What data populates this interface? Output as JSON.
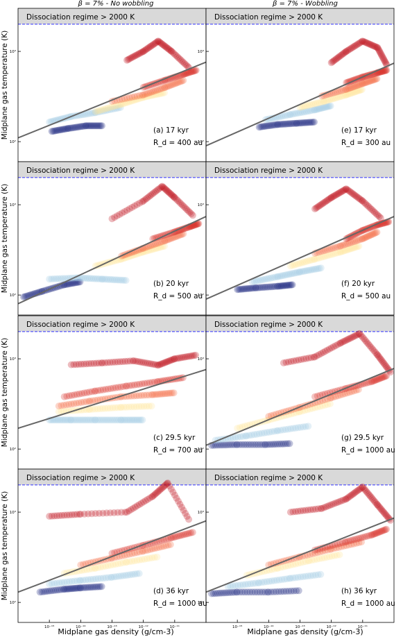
{
  "figure": {
    "column_titles": [
      "β = 7% - No wobbling",
      "β = 7% - Wobbling"
    ],
    "xlabel": "Midplane gas density (g/cm-3)",
    "ylabel": "Midplane gas temperature (K)",
    "regime_label": "Dissociation regime > 2000 K"
  },
  "colors": {
    "regime_band": "#d9d9d9",
    "dashed_line": "#3333ff",
    "fit_line": "#666666",
    "hot": "#c0101a",
    "cold": "#1a237e"
  },
  "chart_data": [
    {
      "type": "scatter",
      "panel": "(a) 17 kyr",
      "rd": "R_d = 400 au",
      "xscale": "log",
      "yscale": "log",
      "xlim": [
        1e-16,
        1e-10
      ],
      "ylim": [
        60,
        3000
      ],
      "dissociation_T": 2000,
      "x_ticks": [
        "10⁻¹⁵",
        "10⁻¹⁴",
        "10⁻¹³",
        "10⁻¹²",
        "10⁻¹¹"
      ],
      "y_ticks": [
        "10²",
        "10³"
      ],
      "fit_line": {
        "x": [
          1e-16,
          1e-10
        ],
        "y": [
          110,
          760
        ]
      },
      "series": [
        {
          "x": [
            1.2e-15,
            4e-15,
            1.5e-14,
            5e-14
          ],
          "y": [
            130,
            140,
            150,
            150
          ],
          "color": "#1a237e"
        },
        {
          "x": [
            1e-15,
            5e-15,
            3e-14,
            2e-13
          ],
          "y": [
            165,
            190,
            210,
            240
          ],
          "color": "#9ecae1"
        },
        {
          "x": [
            3e-14,
            2e-13,
            1e-12,
            5e-12
          ],
          "y": [
            215,
            260,
            310,
            350
          ],
          "color": "#ffe699"
        },
        {
          "x": [
            1e-13,
            1e-12,
            5e-12,
            2e-11
          ],
          "y": [
            280,
            330,
            400,
            480
          ],
          "color": "#f46d43"
        },
        {
          "x": [
            1e-12,
            5e-12,
            2e-11,
            5e-11
          ],
          "y": [
            400,
            480,
            560,
            620
          ],
          "color": "#d73027"
        },
        {
          "x": [
            3e-13,
            1e-12,
            3e-12,
            8e-12,
            3e-11
          ],
          "y": [
            800,
            1000,
            1300,
            1000,
            650
          ],
          "color": "#c0101a"
        }
      ]
    },
    {
      "type": "scatter",
      "panel": "(e) 17 kyr",
      "rd": "R_d = 300 au",
      "xscale": "log",
      "yscale": "log",
      "xlim": [
        1e-16,
        1e-10
      ],
      "ylim": [
        60,
        3000
      ],
      "dissociation_T": 2000,
      "x_ticks": [
        "10⁻¹⁵",
        "10⁻¹⁴",
        "10⁻¹³",
        "10⁻¹²",
        "10⁻¹¹"
      ],
      "y_ticks": [
        "10²",
        "10³"
      ],
      "fit_line": {
        "x": [
          1e-16,
          1e-10
        ],
        "y": [
          90,
          740
        ]
      },
      "series": [
        {
          "x": [
            5e-15,
            2e-14,
            8e-14,
            3e-13
          ],
          "y": [
            145,
            155,
            160,
            165
          ],
          "color": "#1a237e"
        },
        {
          "x": [
            8e-15,
            5e-14,
            3e-13,
            1e-12
          ],
          "y": [
            175,
            200,
            225,
            250
          ],
          "color": "#9ecae1"
        },
        {
          "x": [
            1e-13,
            6e-13,
            3e-12,
            1e-11
          ],
          "y": [
            240,
            280,
            330,
            380
          ],
          "color": "#ffe699"
        },
        {
          "x": [
            5e-13,
            3e-12,
            1e-11,
            3e-11
          ],
          "y": [
            320,
            380,
            440,
            500
          ],
          "color": "#f46d43"
        },
        {
          "x": [
            3e-12,
            1e-11,
            3e-11,
            6e-11
          ],
          "y": [
            450,
            520,
            580,
            620
          ],
          "color": "#d73027"
        },
        {
          "x": [
            1e-12,
            3e-12,
            1e-11,
            3e-11,
            6e-11
          ],
          "y": [
            750,
            1000,
            1300,
            1100,
            700
          ],
          "color": "#c0101a"
        }
      ]
    },
    {
      "type": "scatter",
      "panel": "(b) 20 kyr",
      "rd": "R_d = 500 au",
      "xscale": "log",
      "yscale": "log",
      "xlim": [
        1e-16,
        1e-10
      ],
      "ylim": [
        60,
        3000
      ],
      "dissociation_T": 2000,
      "x_ticks": [
        "10⁻¹⁵",
        "10⁻¹⁴",
        "10⁻¹³",
        "10⁻¹²",
        "10⁻¹¹"
      ],
      "y_ticks": [
        "10²",
        "10³"
      ],
      "fit_line": {
        "x": [
          1e-16,
          1e-10
        ],
        "y": [
          80,
          740
        ]
      },
      "series": [
        {
          "x": [
            1.5e-16,
            6e-16,
            3e-15,
            1e-14
          ],
          "y": [
            95,
            110,
            130,
            140
          ],
          "color": "#1a237e"
        },
        {
          "x": [
            1e-15,
            8e-15,
            5e-14,
            3e-13
          ],
          "y": [
            150,
            155,
            150,
            145
          ],
          "color": "#9ecae1"
        },
        {
          "x": [
            3e-14,
            2e-13,
            1e-12,
            5e-12
          ],
          "y": [
            210,
            250,
            300,
            350
          ],
          "color": "#ffe699"
        },
        {
          "x": [
            2e-13,
            1e-12,
            5e-12,
            2e-11
          ],
          "y": [
            270,
            330,
            400,
            480
          ],
          "color": "#f46d43"
        },
        {
          "x": [
            2e-12,
            1e-11,
            3e-11,
            6e-11
          ],
          "y": [
            420,
            500,
            570,
            620
          ],
          "color": "#d73027"
        },
        {
          "x": [
            1e-13,
            1e-12,
            4e-12,
            1e-11,
            4e-11
          ],
          "y": [
            700,
            1100,
            1600,
            1200,
            750
          ],
          "color": "#c0101a"
        }
      ]
    },
    {
      "type": "scatter",
      "panel": "(f) 20 kyr",
      "rd": "R_d = 500 au",
      "xscale": "log",
      "yscale": "log",
      "xlim": [
        1e-16,
        1e-10
      ],
      "ylim": [
        60,
        3000
      ],
      "dissociation_T": 2000,
      "x_ticks": [
        "10⁻¹⁵",
        "10⁻¹⁴",
        "10⁻¹³",
        "10⁻¹²",
        "10⁻¹¹"
      ],
      "y_ticks": [
        "10²",
        "10³"
      ],
      "fit_line": {
        "x": [
          1e-16,
          1e-10
        ],
        "y": [
          90,
          740
        ]
      },
      "series": [
        {
          "x": [
            1e-15,
            4e-15,
            2e-14,
            6e-14
          ],
          "y": [
            115,
            120,
            125,
            130
          ],
          "color": "#1a237e"
        },
        {
          "x": [
            3e-15,
            2e-14,
            1e-13,
            5e-13
          ],
          "y": [
            140,
            160,
            180,
            200
          ],
          "color": "#9ecae1"
        },
        {
          "x": [
            5e-14,
            3e-13,
            2e-12,
            8e-12
          ],
          "y": [
            210,
            250,
            300,
            350
          ],
          "color": "#ffe699"
        },
        {
          "x": [
            3e-13,
            2e-12,
            1e-11,
            3e-11
          ],
          "y": [
            290,
            350,
            420,
            500
          ],
          "color": "#f46d43"
        },
        {
          "x": [
            3e-12,
            1e-11,
            3e-11,
            7e-11
          ],
          "y": [
            420,
            520,
            600,
            650
          ],
          "color": "#d73027"
        },
        {
          "x": [
            3e-13,
            1e-12,
            3e-12,
            1e-11,
            4e-11
          ],
          "y": [
            900,
            1200,
            1500,
            1100,
            700
          ],
          "color": "#c0101a"
        }
      ]
    },
    {
      "type": "scatter",
      "panel": "(c) 29.5 kyr",
      "rd": "R_d = 700 au",
      "xscale": "log",
      "yscale": "log",
      "xlim": [
        1e-16,
        1e-10
      ],
      "ylim": [
        60,
        3000
      ],
      "dissociation_T": 2000,
      "x_ticks": [
        "10⁻¹⁵",
        "10⁻¹⁴",
        "10⁻¹³",
        "10⁻¹²",
        "10⁻¹¹"
      ],
      "y_ticks": [
        "10²",
        "10³"
      ],
      "fit_line": {
        "x": [
          1e-16,
          1e-10
        ],
        "y": [
          170,
          760
        ]
      },
      "series": [
        {
          "x": [
            1e-15,
            5e-15,
            3e-14,
            2e-13,
            1e-12
          ],
          "y": [
            210,
            210,
            210,
            210,
            210
          ],
          "color": "#9ecae1"
        },
        {
          "x": [
            2e-15,
            2e-14,
            2e-13,
            2e-12
          ],
          "y": [
            260,
            275,
            290,
            300
          ],
          "color": "#ffe699"
        },
        {
          "x": [
            2e-15,
            2e-14,
            2e-13,
            2e-12,
            1e-11
          ],
          "y": [
            300,
            340,
            380,
            400,
            420
          ],
          "color": "#f46d43"
        },
        {
          "x": [
            3e-15,
            3e-14,
            3e-13,
            3e-12,
            2e-11
          ],
          "y": [
            380,
            440,
            500,
            560,
            620
          ],
          "color": "#d73027"
        },
        {
          "x": [
            5e-15,
            5e-14,
            5e-13,
            3e-12,
            1e-11,
            5e-11
          ],
          "y": [
            860,
            900,
            950,
            850,
            1000,
            1100
          ],
          "color": "#c0101a"
        }
      ]
    },
    {
      "type": "scatter",
      "panel": "(g) 29.5 kyr",
      "rd": "R_d = 1000 au",
      "xscale": "log",
      "yscale": "log",
      "xlim": [
        1e-16,
        1e-10
      ],
      "ylim": [
        60,
        3000
      ],
      "dissociation_T": 2000,
      "x_ticks": [
        "10⁻¹⁵",
        "10⁻¹⁴",
        "10⁻¹³",
        "10⁻¹²",
        "10⁻¹¹"
      ],
      "y_ticks": [
        "10²",
        "10³"
      ],
      "fit_line": {
        "x": [
          1e-16,
          1e-10
        ],
        "y": [
          110,
          780
        ]
      },
      "series": [
        {
          "x": [
            1.5e-16,
            1e-15,
            8e-15,
            5e-14
          ],
          "y": [
            110,
            112,
            112,
            115
          ],
          "color": "#1a237e"
        },
        {
          "x": [
            2e-16,
            2e-15,
            2e-14,
            2e-13
          ],
          "y": [
            125,
            140,
            160,
            180
          ],
          "color": "#9ecae1"
        },
        {
          "x": [
            1e-15,
            1e-14,
            1e-13,
            1e-12
          ],
          "y": [
            170,
            210,
            260,
            320
          ],
          "color": "#ffe699"
        },
        {
          "x": [
            1e-14,
            1e-13,
            1e-12,
            8e-12
          ],
          "y": [
            230,
            290,
            370,
            460
          ],
          "color": "#f46d43"
        },
        {
          "x": [
            3e-13,
            3e-12,
            2e-11,
            6e-11
          ],
          "y": [
            380,
            470,
            560,
            650
          ],
          "color": "#d73027"
        },
        {
          "x": [
            3e-14,
            3e-13,
            2e-12,
            8e-12,
            3e-11,
            8e-11
          ],
          "y": [
            900,
            1050,
            1500,
            1900,
            1100,
            700
          ],
          "color": "#c0101a"
        }
      ]
    },
    {
      "type": "scatter",
      "panel": "(d) 36 kyr",
      "rd": "R_d = 1000 au",
      "xscale": "log",
      "yscale": "log",
      "xlim": [
        1e-16,
        1e-10
      ],
      "ylim": [
        60,
        3000
      ],
      "dissociation_T": 2000,
      "x_ticks": [
        "10⁻¹⁵",
        "10⁻¹⁴",
        "10⁻¹³",
        "10⁻¹²",
        "10⁻¹¹"
      ],
      "y_ticks": [
        "10²",
        "10³"
      ],
      "fit_line": {
        "x": [
          1e-16,
          1e-10
        ],
        "y": [
          130,
          800
        ]
      },
      "series": [
        {
          "x": [
            5e-16,
            3e-15,
            1e-14,
            5e-14
          ],
          "y": [
            130,
            140,
            145,
            150
          ],
          "color": "#1a237e"
        },
        {
          "x": [
            1e-15,
            1e-14,
            1e-13,
            8e-13
          ],
          "y": [
            160,
            175,
            190,
            210
          ],
          "color": "#9ecae1"
        },
        {
          "x": [
            3e-15,
            3e-14,
            3e-13,
            3e-12
          ],
          "y": [
            210,
            240,
            280,
            320
          ],
          "color": "#ffe699"
        },
        {
          "x": [
            1e-14,
            1e-13,
            1e-12,
            8e-12
          ],
          "y": [
            260,
            310,
            370,
            440
          ],
          "color": "#f46d43"
        },
        {
          "x": [
            1e-13,
            1e-12,
            8e-12,
            4e-11
          ],
          "y": [
            350,
            430,
            520,
            600
          ],
          "color": "#d73027"
        },
        {
          "x": [
            1e-15,
            1e-14,
            3e-13,
            2e-12,
            6e-12,
            3e-11
          ],
          "y": [
            900,
            950,
            1000,
            1500,
            2100,
            800
          ],
          "color": "#c0101a"
        }
      ]
    },
    {
      "type": "scatter",
      "panel": "(h) 36 kyr",
      "rd": "R_d = 1000 au",
      "xscale": "log",
      "yscale": "log",
      "xlim": [
        1e-16,
        1e-10
      ],
      "ylim": [
        60,
        3000
      ],
      "dissociation_T": 2000,
      "x_ticks": [
        "10⁻¹⁵",
        "10⁻¹⁴",
        "10⁻¹³",
        "10⁻¹²",
        "10⁻¹¹"
      ],
      "y_ticks": [
        "10²",
        "10³"
      ],
      "fit_line": {
        "x": [
          1e-16,
          1e-10
        ],
        "y": [
          130,
          860
        ]
      },
      "series": [
        {
          "x": [
            1.5e-16,
            1e-15,
            1e-14,
            1e-13
          ],
          "y": [
            125,
            130,
            130,
            135
          ],
          "color": "#1a237e"
        },
        {
          "x": [
            5e-16,
            5e-15,
            5e-14,
            5e-13
          ],
          "y": [
            150,
            165,
            185,
            205
          ],
          "color": "#9ecae1"
        },
        {
          "x": [
            2e-15,
            2e-14,
            2e-13,
            2e-12
          ],
          "y": [
            200,
            240,
            290,
            340
          ],
          "color": "#ffe699"
        },
        {
          "x": [
            1e-14,
            1e-13,
            1e-12,
            1e-11
          ],
          "y": [
            260,
            320,
            390,
            470
          ],
          "color": "#f46d43"
        },
        {
          "x": [
            3e-13,
            3e-12,
            2e-11,
            6e-11
          ],
          "y": [
            380,
            470,
            560,
            650
          ],
          "color": "#d73027"
        },
        {
          "x": [
            5e-14,
            5e-13,
            3e-12,
            1e-11,
            3e-11,
            8e-11
          ],
          "y": [
            1000,
            1100,
            1400,
            1900,
            1200,
            800
          ],
          "color": "#c0101a"
        }
      ]
    }
  ]
}
